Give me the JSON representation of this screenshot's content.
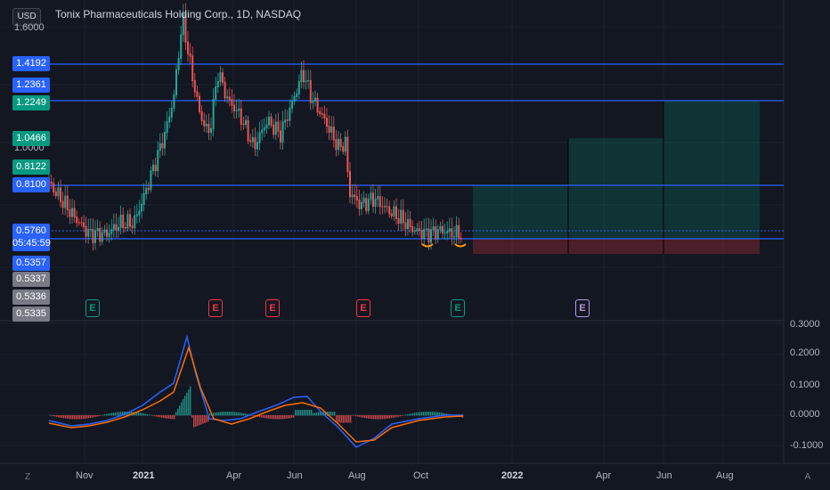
{
  "header": {
    "currency": "USD",
    "title": "Tonix Pharmaceuticals Holding Corp., 1D, NASDAQ"
  },
  "left_scale": {
    "top_tick": "1.6000",
    "mid_tick": "1.0000"
  },
  "price_labels": [
    {
      "text": "1.4192",
      "color": "#2962ff"
    },
    {
      "text": "1.2361",
      "color": "#2962ff"
    },
    {
      "text": "1.2249",
      "color": "#089981"
    },
    {
      "text": "1.0466",
      "color": "#089981"
    },
    {
      "text": "0.8122",
      "color": "#089981"
    },
    {
      "text": "0.8100",
      "color": "#2962ff"
    },
    {
      "text": "0.5760",
      "color": "#2962ff"
    },
    {
      "text": "05:45:59",
      "color": "#2962ff"
    },
    {
      "text": "0.5357",
      "color": "#2962ff"
    },
    {
      "text": "0.5337",
      "color": "#787b86"
    },
    {
      "text": "0.5336",
      "color": "#787b86"
    },
    {
      "text": "0.5335",
      "color": "#787b86"
    }
  ],
  "horizontal_levels": [
    1.4192,
    1.2249,
    0.81,
    0.5357
  ],
  "earnings_badges": [
    {
      "label": "E",
      "color": "#089981"
    },
    {
      "label": "E",
      "color": "#f23645"
    },
    {
      "label": "E",
      "color": "#f23645"
    },
    {
      "label": "E",
      "color": "#f23645"
    },
    {
      "label": "E",
      "color": "#089981"
    },
    {
      "label": "E",
      "color": "#b39ddb"
    }
  ],
  "macd_axis": {
    "ticks": [
      "0.3000",
      "0.2000",
      "0.1000",
      "0.0000",
      "-0.1000"
    ]
  },
  "time_axis": {
    "labels": [
      "Nov",
      "2021",
      "Apr",
      "Jun",
      "Aug",
      "Oct",
      "2022",
      "Apr",
      "Jun",
      "Aug"
    ],
    "left_corner": "Z",
    "right_corner": "A"
  },
  "colors": {
    "background": "#131722",
    "up": "#26a69a",
    "down": "#ef5350",
    "level": "#2962ff",
    "macd": "#2962ff",
    "signal": "#ff6d00"
  },
  "chart_data": {
    "type": "candlestick",
    "price_ticks": [
      "1.6000",
      "1.0000"
    ],
    "levels": [
      1.4192,
      1.2361,
      1.2249,
      1.0466,
      0.8122,
      0.81,
      0.576,
      0.5357
    ],
    "current_price": 0.576,
    "countdown": "05:45:59",
    "macd_ticks": [
      0.3,
      0.2,
      0.1,
      0.0,
      -0.1
    ]
  }
}
